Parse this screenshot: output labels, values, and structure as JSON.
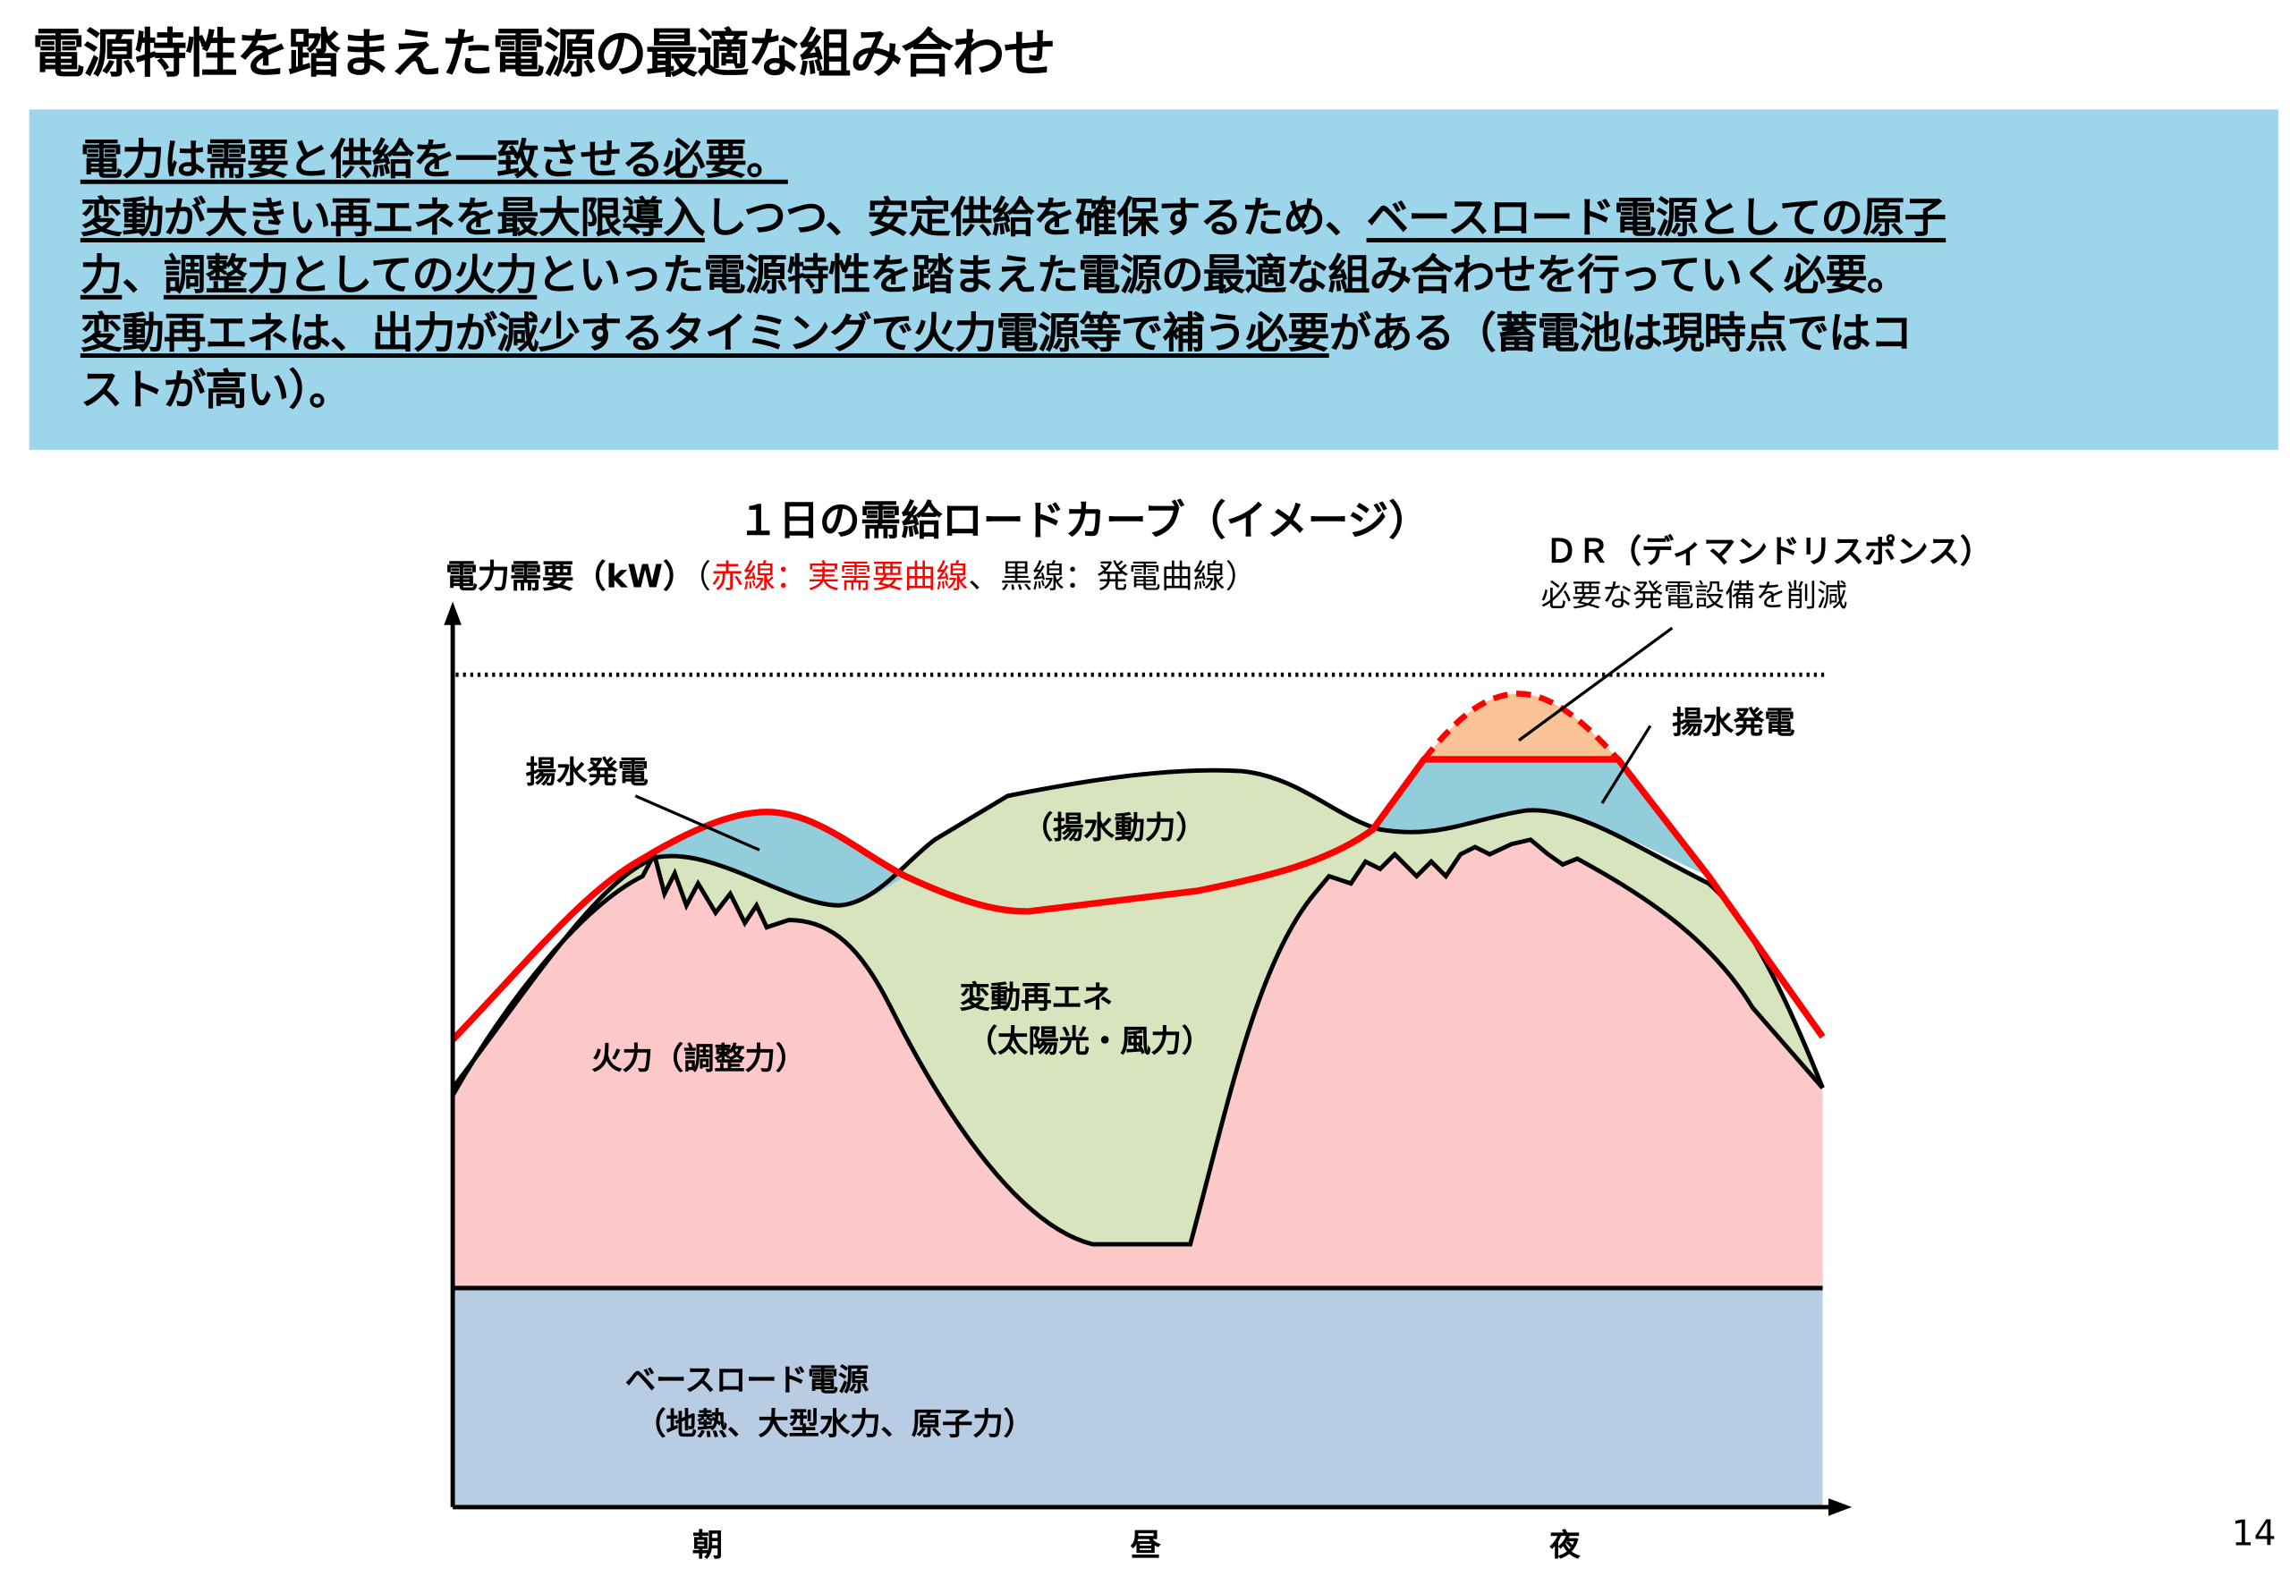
{
  "title": "電源特性を踏まえた電源の最適な組み合わせ",
  "summary": {
    "line1": "電力は需要と供給を一致させる必要。",
    "line2a": "変動が大きい再エネを最大限導入",
    "line2b": "しつつ、安定供給を確保するため、",
    "line2c": "ベースロード電源としての原子",
    "line3a": "力",
    "line3b": "、",
    "line3c": "調整力としての火力",
    "line3d": "といった電源特性を踏まえた電源の最適な組み合わせを行っていく必要。",
    "line4a": "変動再エネは、出力が減少するタイミングで火力電源等で補う必要",
    "line4b": "がある（蓄電池は現時点ではコ",
    "line5": "ストが高い）。"
  },
  "diagram": {
    "title": "１日の需給ロードカーブ（イメージ）",
    "y_axis_label": "電力需要（kW）",
    "legend_open": "（",
    "legend_red": "赤線：実需要曲線",
    "legend_black": "、黒線：発電曲線）",
    "dr_title": "ＤＲ（ディマンドリスポンス）",
    "dr_desc": "必要な発電設備を削減",
    "pumped_gen_left": "揚水発電",
    "pumped_gen_right": "揚水発電",
    "pumped_power": "（揚水動力）",
    "renewables": "変動再エネ",
    "renewables_sub": "（太陽光・風力）",
    "thermal": "火力（調整力）",
    "baseload": "ベースロード電源",
    "baseload_sub": "（地熱、大型水力、原子力）",
    "x_ticks": [
      "朝",
      "昼",
      "夜"
    ],
    "colors": {
      "baseload": "#b8cce4",
      "thermal": "#fcc8c8",
      "renewables": "#d7e4bd",
      "pumped": "#92cddc",
      "dr": "#f9c396",
      "demand_line": "#ff0000"
    }
  },
  "page_number": "14"
}
